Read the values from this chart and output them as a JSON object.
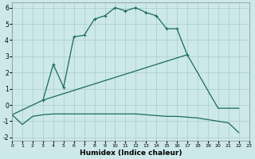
{
  "background_color": "#cce8e8",
  "grid_color": "#aacccc",
  "line_color": "#1a6b5a",
  "xlabel": "Humidex (Indice chaleur)",
  "xlim": [
    0,
    23
  ],
  "ylim": [
    -2.2,
    6.3
  ],
  "yticks": [
    -2,
    -1,
    0,
    1,
    2,
    3,
    4,
    5,
    6
  ],
  "xticks": [
    0,
    1,
    2,
    3,
    4,
    5,
    6,
    7,
    8,
    9,
    10,
    11,
    12,
    13,
    14,
    15,
    16,
    17,
    18,
    19,
    20,
    21,
    22,
    23
  ],
  "curve_x": [
    3,
    4,
    5,
    6,
    7,
    8,
    9,
    10,
    11,
    12,
    13,
    14,
    15,
    16,
    17
  ],
  "curve_y": [
    0.3,
    2.5,
    1.1,
    4.2,
    4.3,
    5.3,
    5.5,
    6.0,
    5.8,
    6.0,
    5.7,
    5.5,
    4.7,
    4.7,
    3.1
  ],
  "diag_x": [
    0,
    3,
    17,
    20,
    21,
    22
  ],
  "diag_y": [
    -0.6,
    0.3,
    3.1,
    -0.2,
    -0.2,
    -0.2
  ],
  "flat_x": [
    0,
    1,
    2,
    3,
    4,
    5,
    6,
    7,
    8,
    9,
    10,
    11,
    12,
    13,
    14,
    15,
    16,
    17,
    18,
    19,
    20,
    21,
    22
  ],
  "flat_y": [
    -0.6,
    -1.2,
    -0.7,
    -0.6,
    -0.55,
    -0.55,
    -0.55,
    -0.55,
    -0.55,
    -0.55,
    -0.55,
    -0.55,
    -0.55,
    -0.6,
    -0.65,
    -0.7,
    -0.7,
    -0.75,
    -0.8,
    -0.9,
    -1.0,
    -1.1,
    -1.7
  ]
}
